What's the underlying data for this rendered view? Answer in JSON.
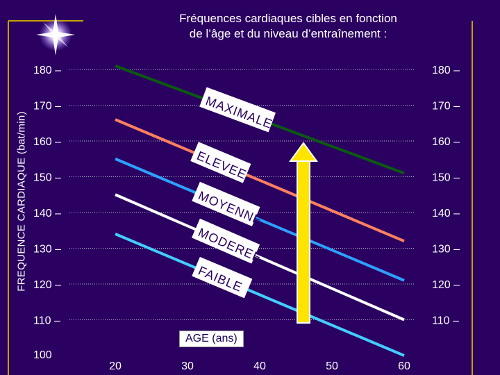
{
  "title_line1": "Fréquences cardiaques cibles en fonction",
  "title_line2": "de l’âge et du niveau d’entraînement :",
  "chart_data": {
    "type": "line",
    "title": "Fréquences cardiaques cibles en fonction de l’âge et du niveau d’entraînement :",
    "xlabel_word": "AGE",
    "xlabel_unit": "(ans)",
    "ylabel": "FREQUENCE CARDIAQUE (bat/min)",
    "x_ticks": [
      "20",
      "30",
      "40",
      "50",
      "60"
    ],
    "y_ticks_left": [
      "180 –",
      "170 –",
      "160 –",
      "150 –",
      "140 –",
      "130 –",
      "120 –",
      "110 –",
      "100"
    ],
    "y_ticks_right": [
      "180 –",
      "170 –",
      "160 –",
      "150 –",
      "140 –",
      "130 –",
      "120 –",
      "110 –"
    ],
    "series": [
      {
        "name": "MAXIMALE",
        "color": "#0b5a12",
        "x": [
          20,
          60
        ],
        "y": [
          181,
          151
        ]
      },
      {
        "name": "ELEVEE",
        "color": "#ff8060",
        "x": [
          20,
          60
        ],
        "y": [
          166,
          132
        ]
      },
      {
        "name": "MOYENNE",
        "color": "#2ea0ff",
        "x": [
          20,
          60
        ],
        "y": [
          155,
          121
        ]
      },
      {
        "name": "MODEREE",
        "color": "#ffffff",
        "x": [
          20,
          60
        ],
        "y": [
          145,
          110
        ]
      },
      {
        "name": "FAIBLE",
        "color": "#44ccff",
        "x": [
          20,
          60
        ],
        "y": [
          134,
          100
        ]
      }
    ],
    "arrow_color": "#ffe400"
  }
}
